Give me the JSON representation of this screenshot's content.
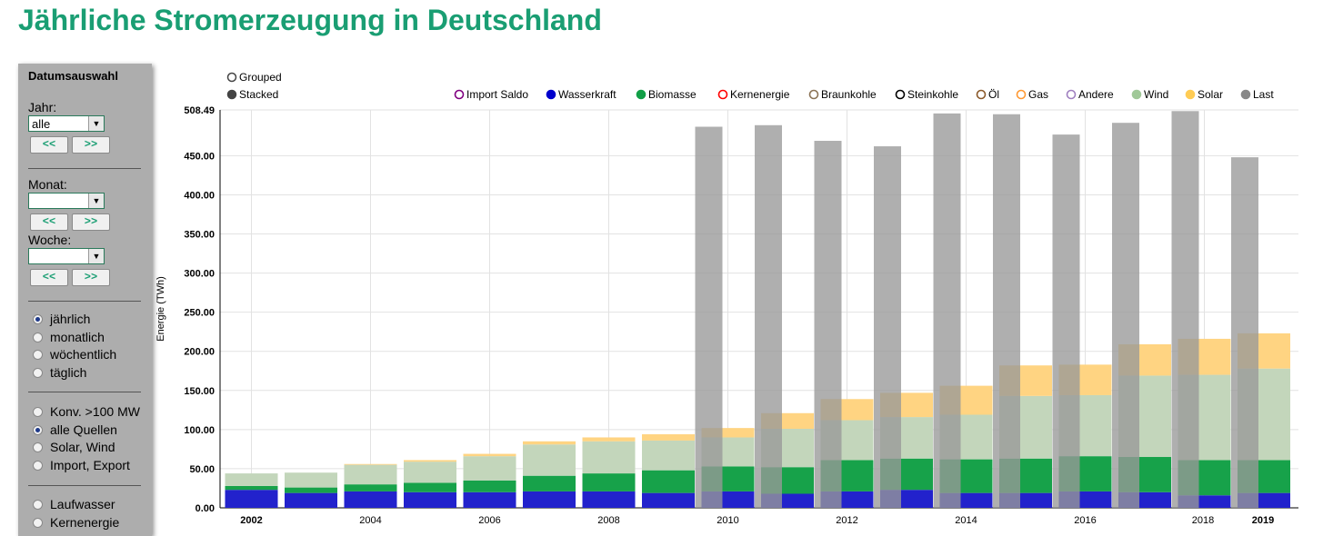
{
  "header": {
    "title": "Jährliche Stromerzeugung in Deutschland"
  },
  "sidebar": {
    "heading": "Datumsauswahl",
    "year_label": "Jahr:",
    "year_value": "alle",
    "month_label": "Monat:",
    "month_value": "",
    "week_label": "Woche:",
    "week_value": "",
    "prev_label": "<<",
    "next_label": ">>",
    "resolution": [
      {
        "label": "jährlich",
        "checked": true
      },
      {
        "label": "monatlich",
        "checked": false
      },
      {
        "label": "wöchentlich",
        "checked": false
      },
      {
        "label": "täglich",
        "checked": false
      }
    ],
    "sources": [
      {
        "label": "Konv. >100 MW",
        "checked": false
      },
      {
        "label": "alle Quellen",
        "checked": true
      },
      {
        "label": "Solar, Wind",
        "checked": false
      },
      {
        "label": "Import, Export",
        "checked": false
      }
    ],
    "extra": [
      {
        "label": "Laufwasser",
        "checked": false
      },
      {
        "label": "Kernenergie",
        "checked": false
      }
    ]
  },
  "chart_data": {
    "type": "bar",
    "mode": "stacked",
    "mode_options": [
      "Grouped",
      "Stacked"
    ],
    "selected_mode": "Stacked",
    "ylabel": "Energie (TWh)",
    "ylim": [
      0,
      508.49
    ],
    "ytop_label": "508.49",
    "yticks": [
      "0.00",
      "50.00",
      "100.00",
      "150.00",
      "200.00",
      "250.00",
      "300.00",
      "350.00",
      "400.00",
      "450.00"
    ],
    "xtick_labels": [
      "2002",
      "2004",
      "2006",
      "2008",
      "2010",
      "2012",
      "2014",
      "2016",
      "2018",
      "2019"
    ],
    "bold_xticks": [
      "2002",
      "2019"
    ],
    "legend": [
      {
        "name": "Import Saldo",
        "color": "#800080",
        "filled": false
      },
      {
        "name": "Wasserkraft",
        "color": "#0000cc",
        "filled": true
      },
      {
        "name": "Biomasse",
        "color": "#129f47",
        "filled": true
      },
      {
        "name": "Kernenergie",
        "color": "#ff0000",
        "filled": false
      },
      {
        "name": "Braunkohle",
        "color": "#8b7355",
        "filled": false
      },
      {
        "name": "Steinkohle",
        "color": "#000000",
        "filled": false
      },
      {
        "name": "Öl",
        "color": "#8b5a2b",
        "filled": false
      },
      {
        "name": "Gas",
        "color": "#ff9933",
        "filled": false
      },
      {
        "name": "Andere",
        "color": "#a080c0",
        "filled": false
      },
      {
        "name": "Wind",
        "color": "#a0c898",
        "filled": true
      },
      {
        "name": "Solar",
        "color": "#ffcc55",
        "filled": true
      },
      {
        "name": "Last",
        "color": "#888888",
        "filled": true
      }
    ],
    "categories": [
      "2002",
      "2003",
      "2004",
      "2005",
      "2006",
      "2007",
      "2008",
      "2009",
      "2010",
      "2011",
      "2012",
      "2013",
      "2014",
      "2015",
      "2016",
      "2017",
      "2018",
      "2019"
    ],
    "series": [
      {
        "name": "Wasserkraft",
        "color": "#2222cc",
        "values": [
          23,
          19,
          21,
          20,
          20,
          21,
          21,
          19,
          21,
          18,
          21,
          23,
          19,
          19,
          21,
          20,
          16,
          19
        ]
      },
      {
        "name": "Biomasse",
        "color": "#17a24a",
        "values": [
          5,
          7,
          9,
          12,
          15,
          20,
          23,
          29,
          32,
          34,
          40,
          40,
          43,
          44,
          45,
          45,
          45,
          42
        ]
      },
      {
        "name": "Wind",
        "color": "#c3d6bb",
        "values": [
          16,
          19,
          25,
          27,
          31,
          40,
          41,
          38,
          37,
          49,
          51,
          53,
          57,
          80,
          78,
          104,
          109,
          117
        ]
      },
      {
        "name": "Solar",
        "color": "#ffd482",
        "values": [
          0,
          0,
          1,
          2,
          3,
          4,
          5,
          8,
          12,
          20,
          27,
          31,
          37,
          39,
          39,
          40,
          46,
          45
        ]
      }
    ],
    "load": {
      "name": "Last",
      "color": "#999999",
      "values": [
        null,
        null,
        null,
        null,
        null,
        null,
        null,
        null,
        487,
        489,
        469,
        462,
        504,
        503,
        477,
        492,
        507,
        448
      ]
    }
  }
}
